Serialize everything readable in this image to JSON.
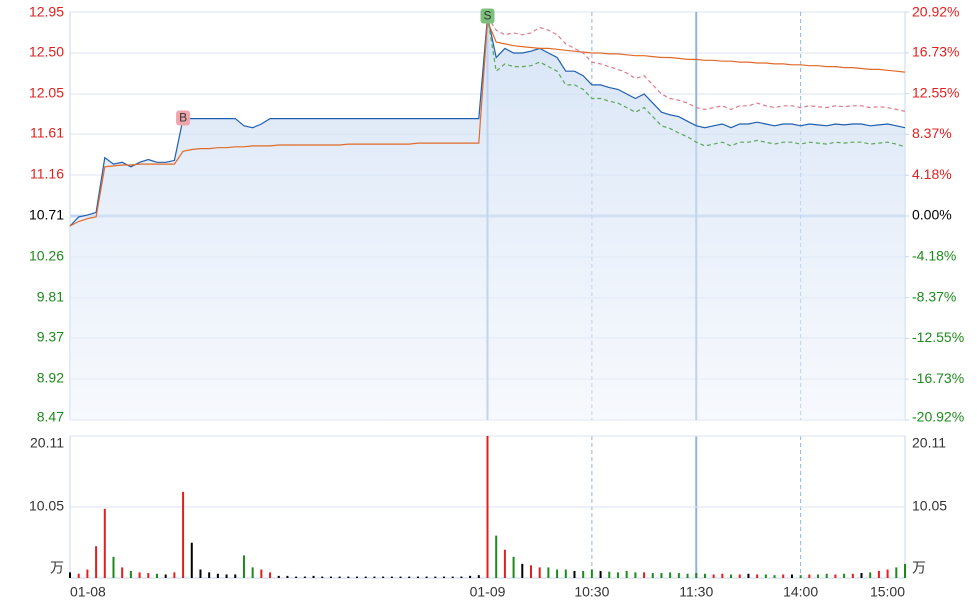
{
  "chart_data": {
    "type": "intraday",
    "x": [
      0,
      5,
      10,
      15,
      20,
      25,
      30,
      35,
      40,
      45,
      50,
      55,
      60,
      65,
      70,
      75,
      80,
      85,
      90,
      95,
      100,
      105,
      110,
      115,
      120,
      125,
      130,
      135,
      140,
      145,
      150,
      155,
      160,
      165,
      170,
      175,
      180,
      185,
      190,
      195,
      200,
      205,
      210,
      215,
      220,
      225,
      230,
      235,
      240,
      245,
      250,
      255,
      260,
      265,
      270,
      275,
      280,
      285,
      290,
      295,
      300,
      305,
      310,
      315,
      320,
      325,
      330,
      335,
      340,
      345,
      350,
      355,
      360,
      365,
      370,
      375,
      380,
      385,
      390,
      395,
      400,
      405,
      410,
      415,
      420,
      425,
      430,
      435,
      440,
      445,
      450,
      455,
      460,
      465,
      470,
      475,
      480
    ],
    "xlim": [
      0,
      480
    ],
    "xticks": [
      {
        "value": 0,
        "label": "01-08"
      },
      {
        "value": 240,
        "label": "01-09",
        "line": "solid"
      },
      {
        "value": 300,
        "label": "10:30",
        "line": "dashed"
      },
      {
        "value": 360,
        "label": "11:30",
        "line": "solid"
      },
      {
        "value": 420,
        "label": "14:00",
        "line": "dashed"
      },
      {
        "value": 480,
        "label": "15:00"
      }
    ],
    "ylim": [
      8.47,
      12.95
    ],
    "yticks": [
      12.95,
      {
        "value": 12.5,
        "label": "12.50"
      },
      12.05,
      11.61,
      11.16,
      10.71,
      10.26,
      9.81,
      9.37,
      8.92,
      8.47
    ],
    "y2lim": [
      -20.92,
      20.92
    ],
    "y2ticks": [
      {
        "value": 20.92,
        "label": "20.92%"
      },
      {
        "value": 16.73,
        "label": "16.73%"
      },
      {
        "value": 12.55,
        "label": "12.55%"
      },
      {
        "value": 8.37,
        "label": "8.37%"
      },
      {
        "value": 4.18,
        "label": "4.18%"
      },
      {
        "value": 0,
        "label": "0.00%"
      },
      {
        "value": -4.18,
        "label": "-4.18%"
      },
      {
        "value": -8.37,
        "label": "-8.37%"
      },
      {
        "value": -12.55,
        "label": "-12.55%"
      },
      {
        "value": -16.73,
        "label": "-16.73%"
      },
      {
        "value": -20.92,
        "label": "-20.92%"
      }
    ],
    "up_color": "#e0201f",
    "down_color": "#1d8a1d",
    "flat_color": "#000000",
    "series": [
      {
        "color": "#1f5fae",
        "area": true,
        "values": [
          10.6,
          10.7,
          10.72,
          10.75,
          11.35,
          11.28,
          11.3,
          11.25,
          11.3,
          11.33,
          11.3,
          11.3,
          11.32,
          11.78,
          11.78,
          11.78,
          11.78,
          11.78,
          11.78,
          11.78,
          11.7,
          11.68,
          11.72,
          11.78,
          11.78,
          11.78,
          11.78,
          11.78,
          11.78,
          11.78,
          11.78,
          11.78,
          11.78,
          11.78,
          11.78,
          11.78,
          11.78,
          11.78,
          11.78,
          11.78,
          11.78,
          11.78,
          11.78,
          11.78,
          11.78,
          11.78,
          11.78,
          11.78,
          12.9,
          12.45,
          12.55,
          12.5,
          12.5,
          12.52,
          12.55,
          12.5,
          12.45,
          12.3,
          12.3,
          12.25,
          12.15,
          12.15,
          12.12,
          12.1,
          12.05,
          12.0,
          12.05,
          11.95,
          11.85,
          11.82,
          11.8,
          11.75,
          11.7,
          11.68,
          11.7,
          11.72,
          11.68,
          11.72,
          11.72,
          11.74,
          11.72,
          11.7,
          11.72,
          11.72,
          11.7,
          11.72,
          11.71,
          11.7,
          11.72,
          11.71,
          11.72,
          11.72,
          11.7,
          11.71,
          11.72,
          11.7,
          11.68
        ]
      },
      {
        "color": "#e06a2a",
        "values": [
          10.6,
          10.65,
          10.68,
          10.7,
          11.25,
          11.26,
          11.27,
          11.27,
          11.28,
          11.28,
          11.28,
          11.28,
          11.28,
          11.42,
          11.44,
          11.45,
          11.45,
          11.46,
          11.46,
          11.47,
          11.47,
          11.48,
          11.48,
          11.48,
          11.49,
          11.49,
          11.49,
          11.49,
          11.49,
          11.49,
          11.49,
          11.49,
          11.5,
          11.5,
          11.5,
          11.5,
          11.5,
          11.5,
          11.5,
          11.5,
          11.51,
          11.51,
          11.51,
          11.51,
          11.51,
          11.51,
          11.51,
          11.51,
          12.85,
          12.62,
          12.6,
          12.58,
          12.57,
          12.56,
          12.55,
          12.55,
          12.54,
          12.53,
          12.52,
          12.51,
          12.5,
          12.5,
          12.49,
          12.49,
          12.48,
          12.47,
          12.47,
          12.46,
          12.45,
          12.45,
          12.44,
          12.43,
          12.43,
          12.42,
          12.42,
          12.41,
          12.41,
          12.4,
          12.4,
          12.39,
          12.39,
          12.38,
          12.38,
          12.37,
          12.37,
          12.36,
          12.36,
          12.35,
          12.35,
          12.34,
          12.34,
          12.33,
          12.32,
          12.32,
          12.31,
          12.3,
          12.29
        ]
      },
      {
        "color": "#e07a8a",
        "dashed": true,
        "values": [
          null,
          null,
          null,
          null,
          null,
          null,
          null,
          null,
          null,
          null,
          null,
          null,
          null,
          null,
          null,
          null,
          null,
          null,
          null,
          null,
          null,
          null,
          null,
          null,
          null,
          null,
          null,
          null,
          null,
          null,
          null,
          null,
          null,
          null,
          null,
          null,
          null,
          null,
          null,
          null,
          null,
          null,
          null,
          null,
          null,
          null,
          null,
          null,
          12.9,
          12.75,
          12.7,
          12.72,
          12.7,
          12.72,
          12.78,
          12.75,
          12.7,
          12.6,
          12.55,
          12.5,
          12.4,
          12.38,
          12.35,
          12.32,
          12.28,
          12.22,
          12.25,
          12.15,
          12.05,
          12.0,
          11.98,
          11.95,
          11.9,
          11.88,
          11.9,
          11.92,
          11.88,
          11.92,
          11.92,
          11.95,
          11.92,
          11.9,
          11.92,
          11.92,
          11.9,
          11.92,
          11.91,
          11.9,
          11.92,
          11.91,
          11.92,
          11.92,
          11.9,
          11.91,
          11.9,
          11.88,
          11.86
        ]
      },
      {
        "color": "#5aa85a",
        "dashed": true,
        "values": [
          null,
          null,
          null,
          null,
          null,
          null,
          null,
          null,
          null,
          null,
          null,
          null,
          null,
          null,
          null,
          null,
          null,
          null,
          null,
          null,
          null,
          null,
          null,
          null,
          null,
          null,
          null,
          null,
          null,
          null,
          null,
          null,
          null,
          null,
          null,
          null,
          null,
          null,
          null,
          null,
          null,
          null,
          null,
          null,
          null,
          null,
          null,
          null,
          12.9,
          12.3,
          12.38,
          12.35,
          12.35,
          12.36,
          12.4,
          12.35,
          12.3,
          12.15,
          12.15,
          12.1,
          12.0,
          12.0,
          11.97,
          11.95,
          11.9,
          11.85,
          11.9,
          11.8,
          11.7,
          11.67,
          11.62,
          11.58,
          11.52,
          11.48,
          11.5,
          11.52,
          11.48,
          11.52,
          11.52,
          11.54,
          11.52,
          11.5,
          11.52,
          11.52,
          11.5,
          11.52,
          11.51,
          11.5,
          11.52,
          11.51,
          11.52,
          11.52,
          11.5,
          11.51,
          11.52,
          11.5,
          11.47
        ]
      }
    ],
    "annotations": [
      {
        "text": "B",
        "x": 65,
        "y": 11.78,
        "color": "#eea5ad"
      },
      {
        "text": "S",
        "x": 240,
        "y": 12.9,
        "color": "#7cc07c"
      }
    ],
    "volume": {
      "ylim": [
        0,
        20.11
      ],
      "yticks": [
        10.05,
        20.11
      ],
      "unit": "万",
      "values": [
        0.8,
        0.6,
        1.2,
        4.5,
        9.8,
        3,
        1.5,
        1,
        0.8,
        0.7,
        0.6,
        0.5,
        0.8,
        12.2,
        5,
        1.2,
        0.8,
        0.6,
        0.5,
        0.5,
        3.2,
        1.5,
        1.2,
        0.8,
        0.3,
        0.3,
        0.2,
        0.2,
        0.3,
        0.2,
        0.2,
        0.2,
        0.2,
        0.2,
        0.2,
        0.2,
        0.2,
        0.2,
        0.2,
        0.2,
        0.2,
        0.2,
        0.2,
        0.2,
        0.2,
        0.2,
        0.3,
        0.4,
        20.11,
        6,
        4,
        3,
        2,
        1.8,
        1.5,
        1.5,
        1.2,
        1.2,
        1,
        1,
        1.2,
        1,
        0.9,
        0.8,
        1,
        0.8,
        0.8,
        0.7,
        0.7,
        0.8,
        0.7,
        0.6,
        0.7,
        0.6,
        0.5,
        0.6,
        0.5,
        0.5,
        0.6,
        0.5,
        0.5,
        0.4,
        0.5,
        0.5,
        0.4,
        0.5,
        0.5,
        0.6,
        0.5,
        0.6,
        0.6,
        0.7,
        0.8,
        1,
        1.2,
        1.5,
        2
      ]
    }
  }
}
